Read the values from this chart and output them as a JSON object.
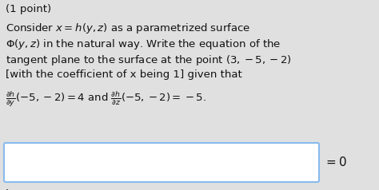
{
  "background_color": "#e0e0e0",
  "text_color": "#111111",
  "line0": "(1 point)",
  "line1": "Consider $x = h(y, z)$ as a parametrized surface",
  "line2": "$\\Phi(y, z)$ in the natural way. Write the equation of the",
  "line3": "tangent plane to the surface at the point $(3, -5, -2)$",
  "line4": "[with the coefficient of x being 1] given that",
  "line5": "$\\frac{\\partial h}{\\partial y}(-5, -2) = 4$ and $\\frac{\\partial h}{\\partial z}(-5, -2) = -5.$",
  "dot": ".",
  "box_fill": "#ffffff",
  "box_edge": "#88bbee",
  "eq_zero": "$= 0$",
  "fig_width": 4.74,
  "fig_height": 2.38,
  "dpi": 100
}
